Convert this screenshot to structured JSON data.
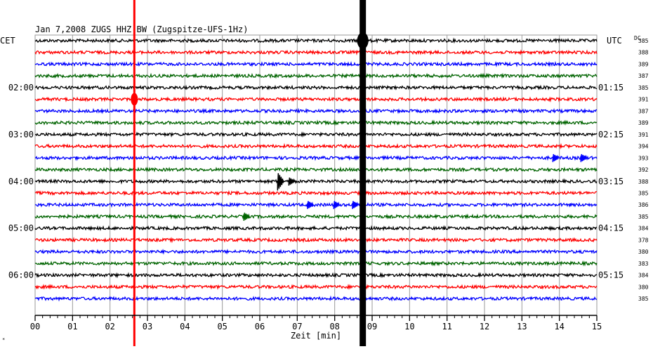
{
  "chart_data": {
    "type": "line",
    "title": "Jan 7,2008   ZUGS HHZ BW (Zugspitze-UFS-1Hz)",
    "xlabel": "Zeit [min]",
    "ylabel": "",
    "left_timezone": "CET",
    "right_timezone": "UTC",
    "dc_label": "DC",
    "xlim": [
      0,
      15
    ],
    "x_ticks": [
      "00",
      "01",
      "02",
      "03",
      "04",
      "05",
      "06",
      "07",
      "08",
      "09",
      "10",
      "11",
      "12",
      "13",
      "14",
      "15"
    ],
    "left_hour_labels": [
      {
        "row": 4,
        "label": "02:00"
      },
      {
        "row": 8,
        "label": "03:00"
      },
      {
        "row": 12,
        "label": "04:00"
      },
      {
        "row": 16,
        "label": "05:00"
      },
      {
        "row": 20,
        "label": "06:00"
      }
    ],
    "right_hour_labels": [
      {
        "row": 4,
        "label": "01:15"
      },
      {
        "row": 8,
        "label": "02:15"
      },
      {
        "row": 12,
        "label": "03:15"
      },
      {
        "row": 16,
        "label": "04:15"
      },
      {
        "row": 20,
        "label": "05:15"
      }
    ],
    "dc_values": [
      "385",
      "388",
      "389",
      "387",
      "385",
      "391",
      "387",
      "389",
      "391",
      "394",
      "393",
      "392",
      "388",
      "385",
      "386",
      "385",
      "384",
      "378",
      "380",
      "383",
      "384",
      "380",
      "385"
    ],
    "colors": [
      "#000000",
      "#ff0000",
      "#0000ff",
      "#006400"
    ],
    "vertical_markers": [
      {
        "minute": 2.65,
        "color": "#ff0000"
      },
      {
        "minute": 8.75,
        "color": "#000000"
      }
    ],
    "events": [
      {
        "row": 12,
        "minute": 6.55,
        "amplitude": "medium"
      },
      {
        "row": 12,
        "minute": 6.85,
        "amplitude": "small"
      },
      {
        "row": 14,
        "minute": 7.35,
        "amplitude": "small"
      },
      {
        "row": 14,
        "minute": 8.05,
        "amplitude": "small"
      },
      {
        "row": 14,
        "minute": 8.55,
        "amplitude": "small"
      },
      {
        "row": 15,
        "minute": 5.65,
        "amplitude": "small"
      },
      {
        "row": 10,
        "minute": 13.9,
        "amplitude": "small"
      },
      {
        "row": 10,
        "minute": 14.65,
        "amplitude": "small"
      }
    ],
    "grid": true
  }
}
